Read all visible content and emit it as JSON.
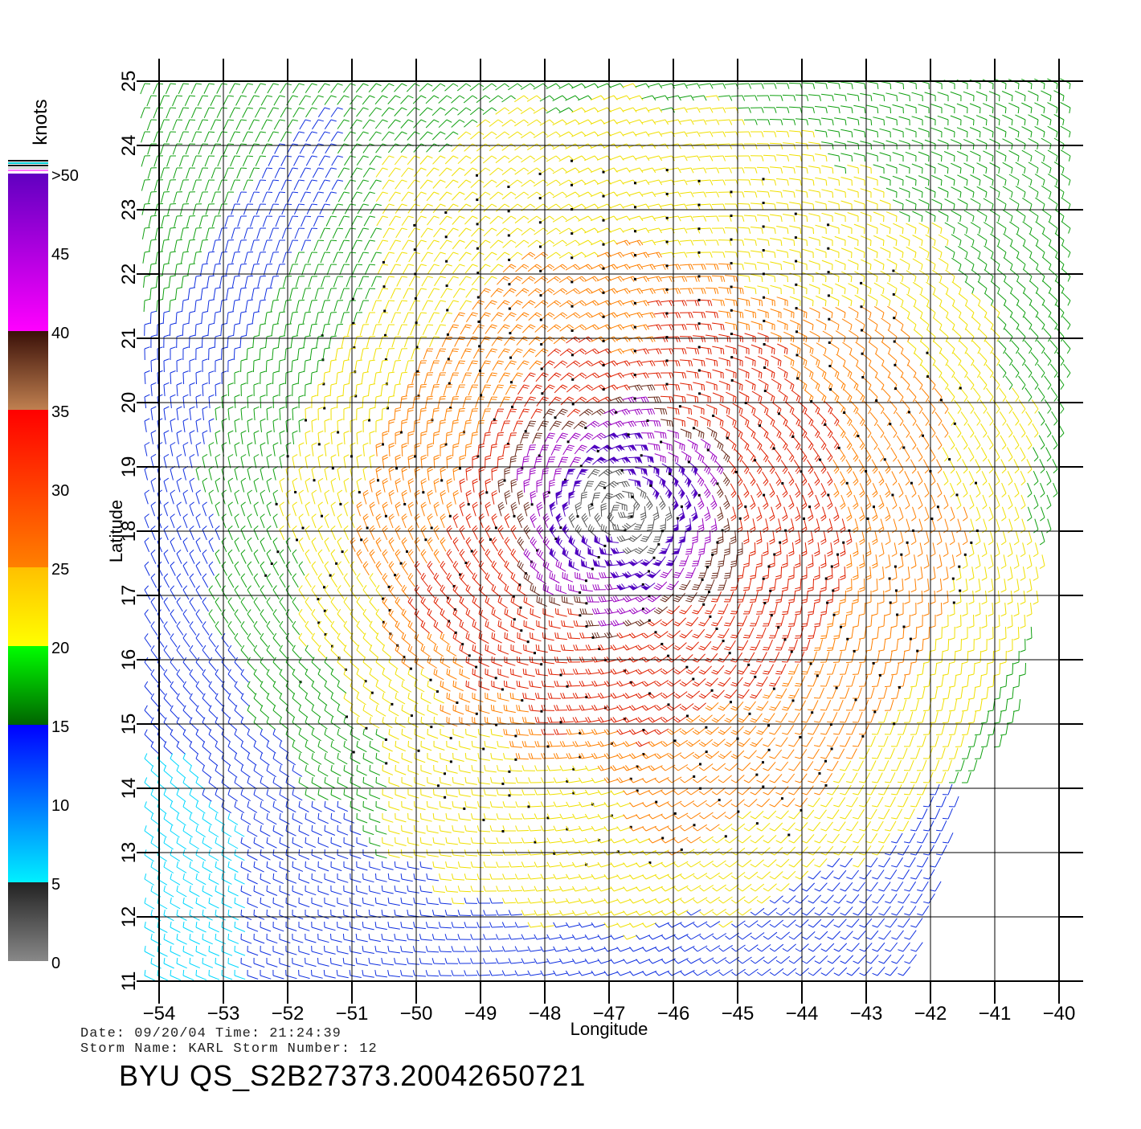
{
  "chart_data": {
    "type": "wind-barb map",
    "xlabel": "Longitude",
    "ylabel": "Latitude",
    "xlim": [
      -54,
      -40
    ],
    "ylim": [
      11,
      25
    ],
    "x_ticks": [
      "−54",
      "−53",
      "−52",
      "−51",
      "−50",
      "−49",
      "−48",
      "−47",
      "−46",
      "−45",
      "−44",
      "−43",
      "−42",
      "−41",
      "−40"
    ],
    "y_ticks": [
      "11",
      "12",
      "13",
      "14",
      "15",
      "16",
      "17",
      "18",
      "19",
      "20",
      "21",
      "22",
      "23",
      "24",
      "25"
    ],
    "grid": true,
    "storm_center": {
      "lon": -46.8,
      "lat": 18.3
    },
    "colorbar": {
      "title": "knots",
      "labels": [
        "0",
        "5",
        "10",
        "15",
        "20",
        "25",
        "30",
        "35",
        "40",
        "45",
        ">50"
      ],
      "stops": [
        {
          "from": 0,
          "to": 5,
          "colors": [
            "#888888",
            "#222222"
          ]
        },
        {
          "from": 5,
          "to": 15,
          "colors": [
            "#00f0ff",
            "#0000ff"
          ]
        },
        {
          "from": 15,
          "to": 20,
          "colors": [
            "#006400",
            "#00ff00"
          ]
        },
        {
          "from": 20,
          "to": 25,
          "colors": [
            "#ffff00",
            "#ffc000"
          ]
        },
        {
          "from": 25,
          "to": 35,
          "colors": [
            "#ff8000",
            "#ff0000"
          ]
        },
        {
          "from": 35,
          "to": 40,
          "colors": [
            "#c08050",
            "#3a1008"
          ]
        },
        {
          "from": 40,
          "to": 50,
          "colors": [
            "#ff00ff",
            "#6000c0"
          ]
        }
      ]
    }
  },
  "info": {
    "line1": "Date: 09/20/04   Time: 21:24:39",
    "line2": "Storm  Name: KARL   Storm  Number: 12",
    "product": "BYU  QS_S2B27373.20042650721"
  },
  "colors": {
    "gray": "#555555",
    "cyan": "#00d8ff",
    "blue": "#1030e0",
    "green": "#10a010",
    "yellow": "#f0e000",
    "orange": "#ff8000",
    "red": "#e02000",
    "brown": "#6a2a1a",
    "purple": "#9a00c0",
    "violet": "#5000c0"
  }
}
